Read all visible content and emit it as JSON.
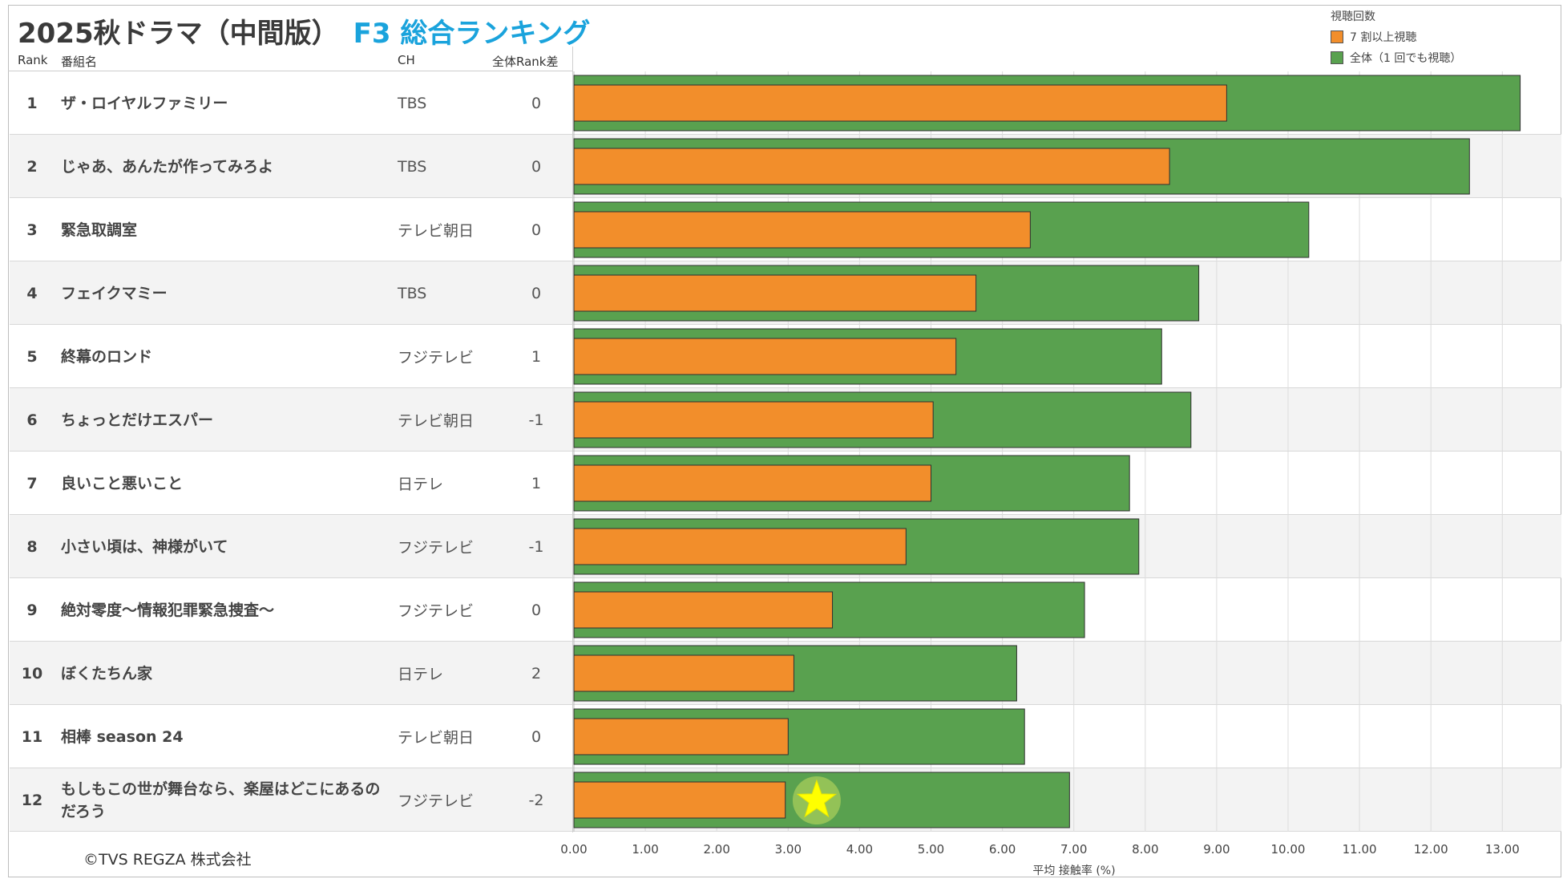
{
  "header": {
    "title_main": "2025秋ドラマ（中間版）",
    "title_accent": "F3 総合ランキング"
  },
  "legend": {
    "title": "視聴回数",
    "items": [
      {
        "label": "7 割以上視聴",
        "color": "#f28e2b"
      },
      {
        "label": "全体（1 回でも視聴）",
        "color": "#59a14f"
      }
    ]
  },
  "columns": {
    "rank": "Rank",
    "name": "番組名",
    "ch": "CH",
    "diff": "全体Rank差"
  },
  "rows": [
    {
      "rank": "1",
      "name": "ザ・ロイヤルファミリー",
      "ch": "TBS",
      "diff": "0"
    },
    {
      "rank": "2",
      "name": "じゃあ、あんたが作ってみろよ",
      "ch": "TBS",
      "diff": "0"
    },
    {
      "rank": "3",
      "name": "緊急取調室",
      "ch": "テレビ朝日",
      "diff": "0"
    },
    {
      "rank": "4",
      "name": "フェイクマミー",
      "ch": "TBS",
      "diff": "0"
    },
    {
      "rank": "5",
      "name": "終幕のロンド",
      "ch": "フジテレビ",
      "diff": "1"
    },
    {
      "rank": "6",
      "name": "ちょっとだけエスパー",
      "ch": "テレビ朝日",
      "diff": "-1"
    },
    {
      "rank": "7",
      "name": "良いこと悪いこと",
      "ch": "日テレ",
      "diff": "1"
    },
    {
      "rank": "8",
      "name": "小さい頃は、神様がいて",
      "ch": "フジテレビ",
      "diff": "-1"
    },
    {
      "rank": "9",
      "name": "絶対零度～情報犯罪緊急捜査～",
      "ch": "フジテレビ",
      "diff": "0"
    },
    {
      "rank": "10",
      "name": "ぼくたちん家",
      "ch": "日テレ",
      "diff": "2"
    },
    {
      "rank": "11",
      "name": "相棒 season 24",
      "ch": "テレビ朝日",
      "diff": "0"
    },
    {
      "rank": "12",
      "name": "もしもこの世が舞台なら、楽屋はどこにあるのだろう",
      "ch": "フジテレビ",
      "diff": "-2",
      "starred": true
    }
  ],
  "copyright": "©TVS REGZA 株式会社",
  "chart_data": {
    "type": "bar",
    "orientation": "horizontal",
    "xlabel": "平均 接触率 (%)",
    "xlim": [
      0,
      13.5
    ],
    "xticks": [
      "0.00",
      "1.00",
      "2.00",
      "3.00",
      "4.00",
      "5.00",
      "6.00",
      "7.00",
      "8.00",
      "9.00",
      "10.00",
      "11.00",
      "12.00",
      "13.00"
    ],
    "categories": [
      "ザ・ロイヤルファミリー",
      "じゃあ、あんたが作ってみろよ",
      "緊急取調室",
      "フェイクマミー",
      "終幕のロンド",
      "ちょっとだけエスパー",
      "良いこと悪いこと",
      "小さい頃は、神様がいて",
      "絶対零度～情報犯罪緊急捜査～",
      "ぼくたちん家",
      "相棒 season 24",
      "もしもこの世が舞台なら、楽屋はどこにあるのだろう"
    ],
    "series": [
      {
        "name": "全体（1 回でも視聴）",
        "color": "#59a14f",
        "values": [
          13.25,
          12.54,
          10.29,
          8.75,
          8.23,
          8.64,
          7.78,
          7.91,
          7.15,
          6.2,
          6.31,
          6.94
        ]
      },
      {
        "name": "7 割以上視聴",
        "color": "#f28e2b",
        "values": [
          9.14,
          8.34,
          6.39,
          5.63,
          5.35,
          5.03,
          5.0,
          4.65,
          3.62,
          3.08,
          3.0,
          2.96
        ]
      }
    ],
    "marker": {
      "type": "star",
      "color": "#ffff00",
      "category_index": 11,
      "x": 3.4
    }
  }
}
